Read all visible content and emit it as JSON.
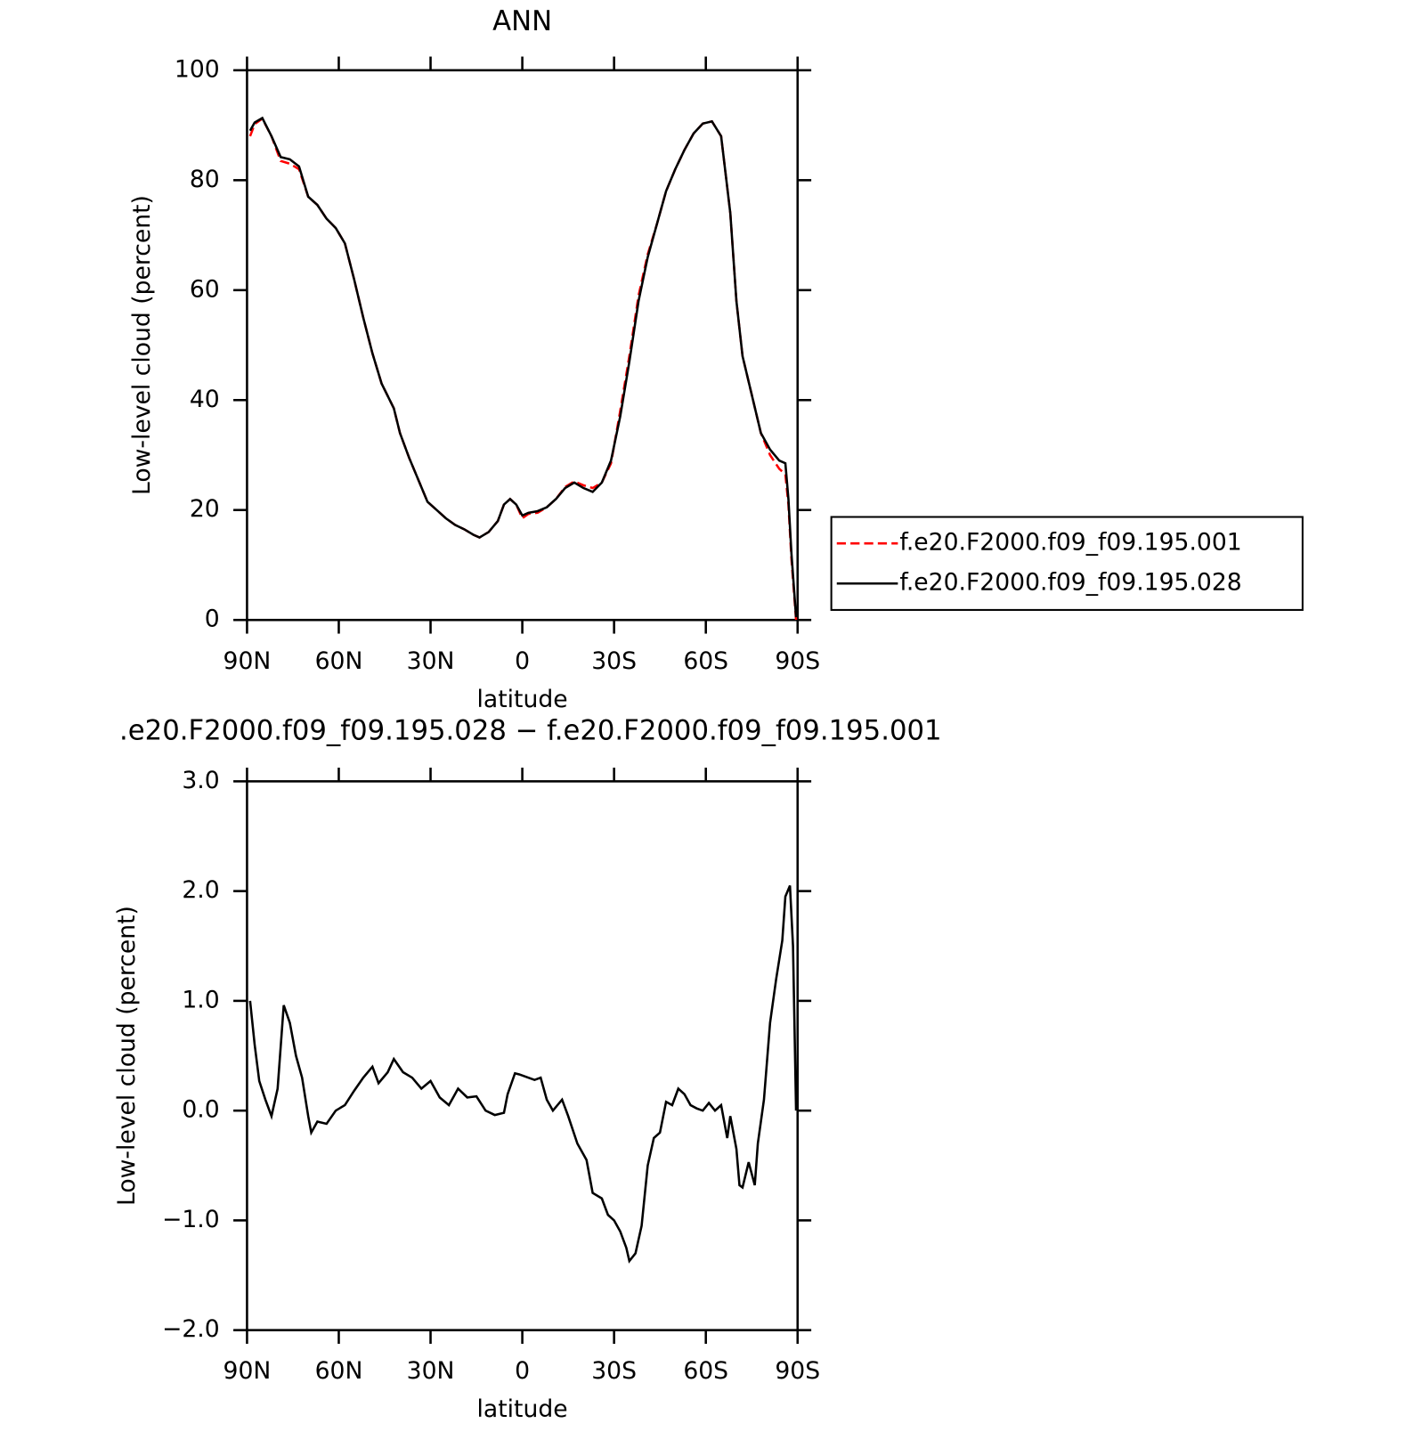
{
  "chart_data": [
    {
      "type": "line",
      "title": "ANN",
      "xlabel": "latitude",
      "ylabel": "Low-level cloud (percent)",
      "x": [
        89,
        87.5,
        85,
        82,
        79,
        76,
        73,
        70,
        67,
        64,
        61,
        58,
        55,
        52,
        49,
        46,
        42,
        40,
        37,
        34,
        31,
        28,
        25,
        22,
        19,
        16,
        14,
        11,
        8,
        6,
        4,
        2,
        0,
        -2,
        -5,
        -8,
        -11,
        -14,
        -17,
        -20,
        -23,
        -26,
        -29,
        -32,
        -35,
        -38,
        -41,
        -44,
        -47,
        -50,
        -53,
        -56,
        -59,
        -62,
        -65,
        -68,
        -70,
        -72,
        -75,
        -78,
        -81,
        -84,
        -86,
        -87,
        -88,
        -89.5
      ],
      "series": [
        {
          "name": "f.e20.F2000.f09_f09.195.001",
          "color": "#ff0000",
          "dashed": true,
          "values": [
            88,
            90.2,
            91.2,
            88,
            83.5,
            83,
            82,
            77,
            75.5,
            73,
            71.3,
            68.5,
            62,
            55,
            48.5,
            43,
            38.5,
            34,
            29.5,
            25.5,
            21.5,
            20,
            18.5,
            17.3,
            16.5,
            15.5,
            15,
            16,
            18,
            21,
            22,
            21,
            18.5,
            19.3,
            19.5,
            20.5,
            22,
            24.2,
            25.2,
            24.5,
            24,
            25,
            28.5,
            38,
            48,
            59,
            66.5,
            72,
            78,
            82,
            85.5,
            88.5,
            90.3,
            90.7,
            88,
            74,
            58,
            48,
            41,
            34,
            30,
            27.5,
            26.5,
            21,
            11,
            0
          ]
        },
        {
          "name": "f.e20.F2000.f09_f09.195.028",
          "color": "#000000",
          "dashed": false,
          "values": [
            89,
            90.5,
            91.3,
            88,
            84.2,
            83.8,
            82.5,
            77,
            75.5,
            73,
            71.3,
            68.5,
            62,
            55,
            48.5,
            43,
            38.5,
            34,
            29.5,
            25.5,
            21.5,
            20,
            18.5,
            17.3,
            16.5,
            15.5,
            15,
            16,
            18,
            21,
            22,
            21,
            19,
            19.5,
            19.8,
            20.5,
            22,
            24,
            25,
            24,
            23.3,
            25,
            29,
            37,
            47,
            58,
            66,
            72,
            78,
            82,
            85.5,
            88.5,
            90.3,
            90.7,
            88,
            74,
            58,
            48,
            41,
            34,
            31,
            29,
            28.5,
            22,
            12,
            0.5
          ]
        }
      ],
      "xlim": [
        90,
        -90
      ],
      "xticks": [
        {
          "value": 90,
          "label": "90N"
        },
        {
          "value": 60,
          "label": "60N"
        },
        {
          "value": 30,
          "label": "30N"
        },
        0,
        {
          "value": -30,
          "label": "30S"
        },
        {
          "value": -60,
          "label": "60S"
        },
        {
          "value": -90,
          "label": "90S"
        }
      ],
      "ylim": [
        0,
        100
      ],
      "yticks": [
        0,
        20,
        40,
        60,
        80,
        100
      ],
      "legend": "right"
    },
    {
      "type": "line",
      "title": ".e20.F2000.f09_f09.195.028 − f.e20.F2000.f09_f09.195.001",
      "xlabel": "latitude",
      "ylabel": "Low-level cloud (percent)",
      "x": [
        89,
        87.5,
        86,
        84,
        82,
        80,
        78,
        76,
        74,
        72,
        70,
        69,
        67,
        64,
        61,
        58,
        55,
        52,
        49,
        47,
        44,
        42,
        39,
        36,
        33,
        30,
        27,
        24,
        21,
        18,
        15,
        12,
        9,
        6,
        4.8,
        2.4,
        1,
        -2,
        -4,
        -6,
        -8,
        -10,
        -13,
        -15,
        -18,
        -21,
        -23,
        -26,
        -28,
        -30,
        -32,
        -34,
        -35,
        -37,
        -39,
        -41,
        -43,
        -45,
        -47,
        -49,
        -51,
        -53,
        -55,
        -57,
        -59,
        -61,
        -63,
        -65,
        -67,
        -68,
        -70,
        -71,
        -72,
        -74,
        -76,
        -77,
        -79,
        -81,
        -83,
        -85,
        -86,
        -87.5,
        -88.5,
        -89.5
      ],
      "series": [
        {
          "color": "#000000",
          "dashed": false,
          "values": [
            1.0,
            0.6,
            0.27,
            0.1,
            -0.05,
            0.2,
            0.96,
            0.8,
            0.5,
            0.3,
            -0.05,
            -0.2,
            -0.1,
            -0.12,
            0.0,
            0.05,
            0.18,
            0.3,
            0.4,
            0.25,
            0.35,
            0.47,
            0.35,
            0.3,
            0.2,
            0.27,
            0.12,
            0.05,
            0.2,
            0.12,
            0.13,
            0.0,
            -0.04,
            -0.02,
            0.15,
            0.34,
            0.33,
            0.3,
            0.28,
            0.3,
            0.1,
            0.0,
            0.1,
            -0.05,
            -0.3,
            -0.45,
            -0.75,
            -0.8,
            -0.95,
            -1.0,
            -1.1,
            -1.25,
            -1.37,
            -1.3,
            -1.05,
            -0.5,
            -0.25,
            -0.2,
            0.08,
            0.05,
            0.2,
            0.15,
            0.05,
            0.02,
            0.0,
            0.07,
            0.0,
            0.05,
            -0.25,
            -0.05,
            -0.35,
            -0.68,
            -0.7,
            -0.47,
            -0.68,
            -0.3,
            0.1,
            0.8,
            1.2,
            1.55,
            1.95,
            2.05,
            1.5,
            0.0
          ]
        }
      ],
      "xlim": [
        90,
        -90
      ],
      "xticks": [
        {
          "value": 90,
          "label": "90N"
        },
        {
          "value": 60,
          "label": "60N"
        },
        {
          "value": 30,
          "label": "30N"
        },
        0,
        {
          "value": -30,
          "label": "30S"
        },
        {
          "value": -60,
          "label": "60S"
        },
        {
          "value": -90,
          "label": "90S"
        }
      ],
      "ylim": [
        -2,
        3
      ],
      "yticks": [
        {
          "value": -2,
          "label": "−2.0"
        },
        {
          "value": -1,
          "label": "−1.0"
        },
        {
          "value": 0,
          "label": "0.0"
        },
        {
          "value": 1,
          "label": "1.0"
        },
        {
          "value": 2,
          "label": "2.0"
        },
        {
          "value": 3,
          "label": "3.0"
        }
      ]
    }
  ]
}
